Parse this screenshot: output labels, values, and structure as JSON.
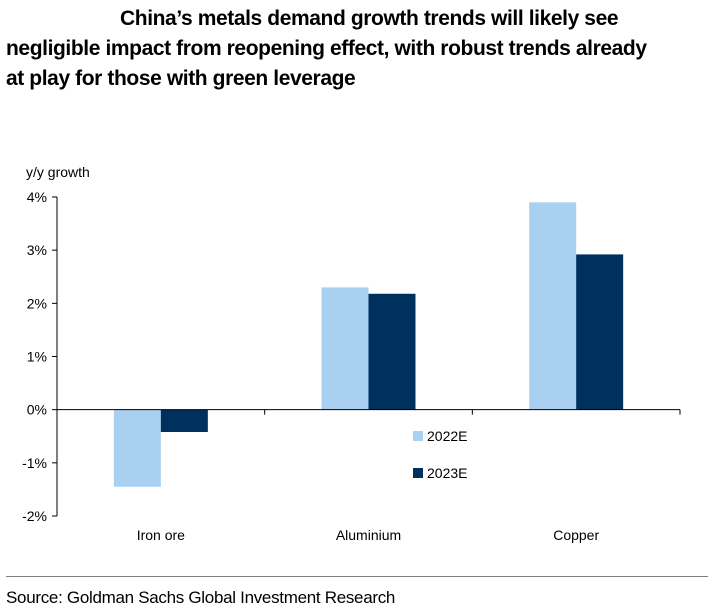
{
  "title_lines": [
    "China’s metals demand growth trends will likely see",
    "negligible impact from reopening effect, with robust trends already",
    "at play for those with green leverage"
  ],
  "source": "Source: Goldman Sachs Global Investment Research",
  "chart_data": {
    "type": "bar",
    "ylabel": "y/y growth",
    "xlabel": "",
    "ylim": [
      -2,
      4
    ],
    "yticks": [
      4,
      3,
      2,
      1,
      0,
      -1,
      -2
    ],
    "ytick_labels": [
      "4%",
      "3%",
      "2%",
      "1%",
      "0%",
      "-1%",
      "-2%"
    ],
    "categories": [
      "Iron ore",
      "Aluminium",
      "Copper"
    ],
    "series": [
      {
        "name": "2022E",
        "color": "#a9d0f0",
        "values": [
          -1.45,
          2.3,
          3.9
        ]
      },
      {
        "name": "2023E",
        "color": "#00305e",
        "values": [
          -0.42,
          2.18,
          2.92
        ]
      }
    ],
    "legend_position": "center-bottom",
    "grid": false
  }
}
